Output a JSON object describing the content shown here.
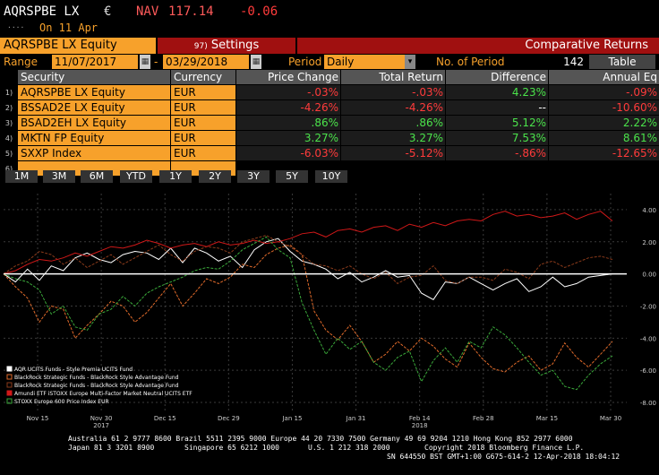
{
  "header": {
    "ticker": "AQRSPBE LX",
    "currency_symbol": "€",
    "nav_label": "NAV",
    "nav_value": "117.14",
    "nav_change": "-0.06",
    "dots": "....",
    "date_line": "On 11 Apr"
  },
  "toolbar": {
    "security": "AQRSPBE LX Equity",
    "settings_num": "97)",
    "settings_label": "Settings",
    "title": "Comparative Returns"
  },
  "range": {
    "label": "Range",
    "start": "11/07/2017",
    "dash": "-",
    "end": "03/29/2018",
    "period_label": "Period",
    "period_value": "Daily",
    "no_period_label": "No. of Period",
    "no_period_value": "142 Day(s)",
    "table_button": "Table"
  },
  "table": {
    "headers": [
      "Security",
      "Currency",
      "Price Change",
      "Total Return",
      "Difference",
      "Annual Eq"
    ],
    "rows": [
      {
        "num": "1)",
        "security": "AQRSPBE LX Equity",
        "currency": "EUR",
        "price_change": "-.03%",
        "total_return": "-.03%",
        "difference": "4.23%",
        "annual_eq": "-.09%"
      },
      {
        "num": "2)",
        "security": "BSSAD2E LX Equity",
        "currency": "EUR",
        "price_change": "-4.26%",
        "total_return": "-4.26%",
        "difference": "--",
        "annual_eq": "-10.60%"
      },
      {
        "num": "3)",
        "security": "BSAD2EH LX Equity",
        "currency": "EUR",
        "price_change": ".86%",
        "total_return": ".86%",
        "difference": "5.12%",
        "annual_eq": "2.22%"
      },
      {
        "num": "4)",
        "security": "MKTN FP Equity",
        "currency": "EUR",
        "price_change": "3.27%",
        "total_return": "3.27%",
        "difference": "7.53%",
        "annual_eq": "8.61%"
      },
      {
        "num": "5)",
        "security": "SXXP Index",
        "currency": "EUR",
        "price_change": "-6.03%",
        "total_return": "-5.12%",
        "difference": "-.86%",
        "annual_eq": "-12.65%"
      },
      {
        "num": "6)",
        "security": "",
        "currency": "",
        "price_change": "",
        "total_return": "",
        "difference": "",
        "annual_eq": ""
      }
    ]
  },
  "periods": [
    "1M",
    "3M",
    "6M",
    "YTD",
    "1Y",
    "2Y",
    "3Y",
    "5Y",
    "10Y"
  ],
  "chart_data": {
    "type": "line",
    "x_ticks": [
      "Nov 15",
      "Nov 30",
      "Dec 15",
      "Dec 29",
      "Jan 15",
      "Jan 31",
      "Feb 14",
      "Feb 28",
      "Mar 15",
      "Mar 30"
    ],
    "x_year_labels": [
      "2017",
      "2018"
    ],
    "y_ticks": [
      "4.00",
      "2.00",
      "0.00",
      "-2.00",
      "-4.00",
      "-6.00",
      "-8.00"
    ],
    "ylim": [
      -8.5,
      5
    ],
    "legend": [
      "AQR UCITS Funds - Style Premia UCITS Fund",
      "BlackRock Strategic Funds - BlackRock Style Advantage Fund",
      "BlackRock Strategic Funds - BlackRock Style Advantage Fund",
      "Amundi ETF iSTOXX Europe Multi-Factor Market Neutral UCITS ETF",
      "STOXX Europe 600 Price Index EUR"
    ],
    "series": [
      {
        "name": "AQR UCITS Funds - Style Premia UCITS Fund",
        "color": "#ffffff",
        "values": [
          0,
          -0.5,
          0.3,
          -0.4,
          0.5,
          0.2,
          1.0,
          1.3,
          0.9,
          0.7,
          1.2,
          1.4,
          1.3,
          0.9,
          1.6,
          0.7,
          1.6,
          1.3,
          0.8,
          1.1,
          0.4,
          1.5,
          2.0,
          2.2,
          1.4,
          0.8,
          0.6,
          0.3,
          -0.3,
          0.1,
          -0.5,
          -0.2,
          0.2,
          -0.2,
          -0.1,
          -1.2,
          -1.6,
          -0.5,
          -0.6,
          -0.2,
          -0.6,
          -1.0,
          -0.6,
          -0.3,
          -1.1,
          -0.8,
          -0.2,
          -0.8,
          -0.6,
          -0.2,
          -0.1,
          0.0
        ]
      },
      {
        "name": "BlackRock Strategic Funds - BlackRock Style Advantage Fund",
        "color": "#e06a2a",
        "values": [
          0,
          -0.8,
          -1.5,
          -3.0,
          -2.0,
          -2.2,
          -4.0,
          -3.2,
          -2.5,
          -1.7,
          -2.0,
          -3.0,
          -2.4,
          -1.5,
          -0.6,
          -2.0,
          -1.2,
          -0.3,
          -0.6,
          -0.2,
          0.6,
          0.4,
          1.2,
          1.6,
          1.8,
          1.2,
          -2.3,
          -3.5,
          -4.1,
          -3.2,
          -4.2,
          -5.5,
          -5.0,
          -4.2,
          -4.8,
          -4.0,
          -4.5,
          -5.3,
          -5.8,
          -4.3,
          -5.2,
          -5.9,
          -6.1,
          -5.5,
          -5.1,
          -6.0,
          -5.6,
          -4.3,
          -5.2,
          -5.8,
          -5.0,
          -4.2
        ]
      },
      {
        "name": "BlackRock Strategic Funds - BlackRock Style Advantage Fund",
        "color": "#8a3a1a",
        "values": [
          0,
          0.5,
          0.8,
          1.4,
          1.2,
          0.6,
          1.0,
          0.4,
          0.8,
          1.2,
          0.6,
          1.0,
          1.4,
          1.8,
          1.2,
          0.8,
          1.4,
          1.7,
          1.6,
          1.3,
          2.0,
          2.2,
          2.4,
          2.0,
          1.7,
          1.2,
          0.6,
          0.5,
          0.2,
          0.5,
          0.0,
          -0.3,
          0.1,
          -0.6,
          -0.2,
          -0.1,
          0.5,
          -0.4,
          -0.6,
          -0.2,
          -0.2,
          -0.4,
          0.3,
          0.1,
          -0.3,
          0.6,
          0.8,
          0.4,
          0.7,
          1.0,
          1.1,
          0.9
        ]
      },
      {
        "name": "Amundi ETF iSTOXX Europe Multi-Factor Market Neutral UCITS ETF",
        "color": "#d01818",
        "values": [
          0,
          0.2,
          0.6,
          0.9,
          0.8,
          1.0,
          1.3,
          1.1,
          1.4,
          1.7,
          1.6,
          1.8,
          2.1,
          1.9,
          1.6,
          1.8,
          1.9,
          1.7,
          2.0,
          1.8,
          1.9,
          2.1,
          1.9,
          2.0,
          2.2,
          2.5,
          2.6,
          2.3,
          2.7,
          2.8,
          2.6,
          2.9,
          3.0,
          2.7,
          3.1,
          2.9,
          3.2,
          3.0,
          3.3,
          3.4,
          3.3,
          3.7,
          3.9,
          3.6,
          3.7,
          3.5,
          3.6,
          3.8,
          3.4,
          3.7,
          3.9,
          3.3
        ]
      },
      {
        "name": "STOXX Europe 600 Price Index EUR",
        "color": "#3aa83a",
        "values": [
          0,
          -0.3,
          -0.5,
          -1.0,
          -2.5,
          -2.0,
          -3.3,
          -3.5,
          -2.5,
          -2.2,
          -1.4,
          -2.0,
          -1.2,
          -0.8,
          -0.5,
          -0.2,
          0.2,
          0.4,
          0.3,
          0.8,
          1.5,
          1.9,
          2.3,
          1.5,
          1.0,
          -1.8,
          -3.5,
          -5.0,
          -4.0,
          -4.7,
          -4.2,
          -5.5,
          -6.0,
          -5.2,
          -4.8,
          -6.7,
          -5.4,
          -4.6,
          -5.5,
          -4.2,
          -4.6,
          -3.3,
          -3.8,
          -4.6,
          -5.5,
          -6.3,
          -6.0,
          -7.0,
          -7.2,
          -6.3,
          -5.6,
          -5.1
        ]
      }
    ]
  },
  "footer": {
    "line1": "Australia 61 2 9777 8600 Brazil 5511 2395 9000 Europe 44 20 7330 7500 Germany 49 69 9204 1210 Hong Kong 852 2977 6000",
    "line2a": "Japan 81 3 3201 8900",
    "line2b": "Singapore 65 6212 1000",
    "line2c": "U.S. 1 212 318 2000",
    "line2d": "Copyright 2018 Bloomberg Finance L.P.",
    "line3": "SN 644550 BST  GMT+1:00 G675-614-2 12-Apr-2018 18:04:12"
  }
}
